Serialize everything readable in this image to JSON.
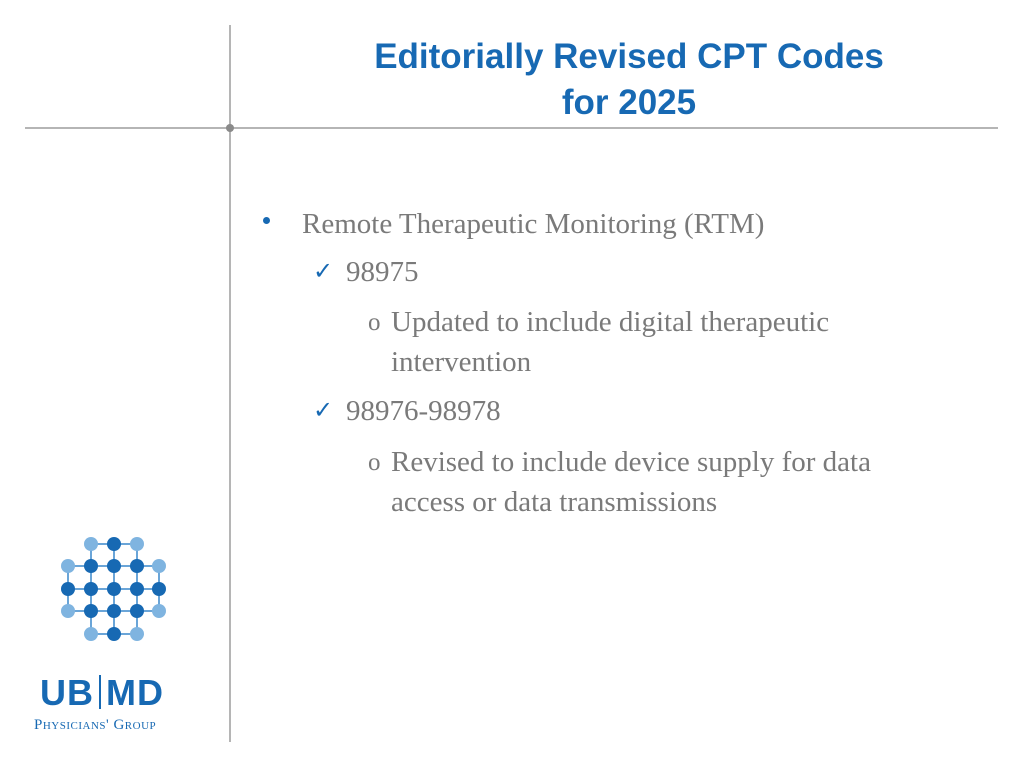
{
  "slide": {
    "title_line1": "Editorially Revised CPT Codes",
    "title_line2": "for 2025"
  },
  "content": {
    "bullet": "Remote Therapeutic Monitoring (RTM)",
    "items": [
      {
        "code": "98975",
        "sub_lines": [
          "Updated to include digital therapeutic",
          "intervention"
        ]
      },
      {
        "code": "98976-98978",
        "sub_lines": [
          "Revised to include device supply for data",
          "access or data transmissions"
        ]
      }
    ],
    "check_glyph": "✓",
    "sub_glyph": "o"
  },
  "logo": {
    "text_left": "UB",
    "text_right": "MD",
    "subtitle": "Physicians' Group",
    "colors": {
      "dark": "#1769b3",
      "light": "#7fb4e0",
      "line": "#6aa5d8"
    }
  },
  "colors": {
    "accent": "#1769b3",
    "body_text": "#7a7a7a",
    "divider": "#b5b5b5"
  }
}
